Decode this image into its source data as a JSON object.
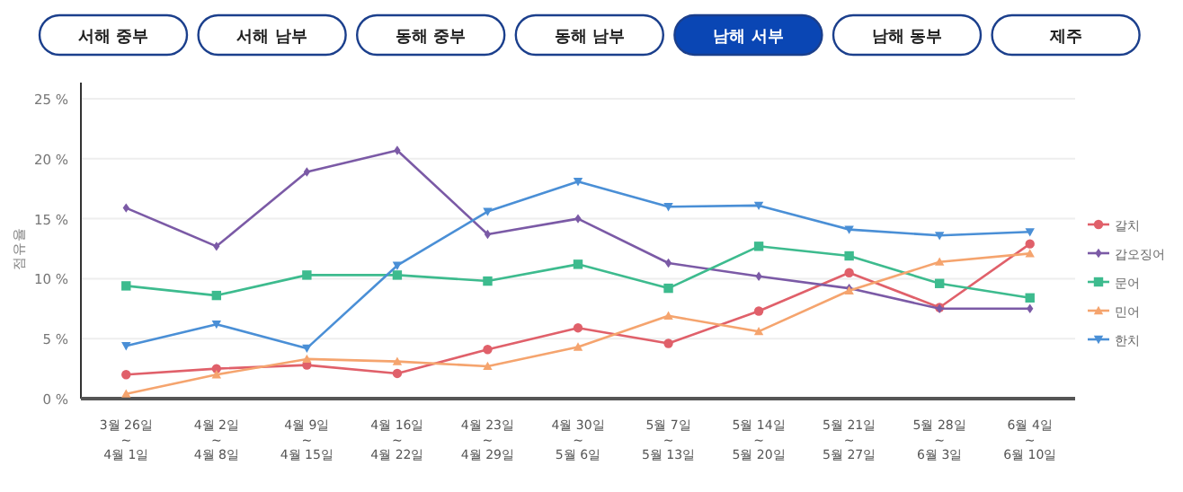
{
  "chart_data": {
    "type": "line",
    "annotations": [
      "서해 중부",
      "서해 남부",
      "동해 중부",
      "동해 남부",
      "남해 서부",
      "남해 동부",
      "제주"
    ],
    "ylabel": "점유율",
    "categories": [
      "3월 26일\n~\n4월 1일",
      "4월 2일\n~\n4월 8일",
      "4월 9일\n~\n4월 15일",
      "4월 16일\n~\n4월 22일",
      "4월 23일\n~\n4월 29일",
      "4월 30일\n~\n5월 6일",
      "5월 7일\n~\n5월 13일",
      "5월 14일\n~\n5월 20일",
      "5월 21일\n~\n5월 27일",
      "5월 28일\n~\n6월 3일",
      "6월 4일\n~\n6월 10일"
    ],
    "series": [
      {
        "name": "갈치",
        "color": "#e0606a",
        "marker": "circle",
        "values": [
          2.0,
          2.5,
          2.8,
          2.1,
          4.1,
          5.9,
          4.6,
          7.3,
          10.5,
          7.6,
          12.9
        ]
      },
      {
        "name": "갑오징어",
        "color": "#7b5aa6",
        "marker": "diamond",
        "values": [
          15.9,
          12.7,
          18.9,
          20.7,
          13.7,
          15.0,
          11.3,
          10.2,
          9.2,
          7.5,
          7.5
        ]
      },
      {
        "name": "문어",
        "color": "#3dbb8e",
        "marker": "square",
        "values": [
          9.4,
          8.6,
          10.3,
          10.3,
          9.8,
          11.2,
          9.2,
          12.7,
          11.9,
          9.6,
          8.4
        ]
      },
      {
        "name": "민어",
        "color": "#f5a46e",
        "marker": "triangle",
        "values": [
          0.4,
          2.0,
          3.3,
          3.1,
          2.7,
          4.3,
          6.9,
          5.6,
          9.0,
          11.4,
          12.1
        ]
      },
      {
        "name": "한치",
        "color": "#4a8fd6",
        "marker": "triangle-down",
        "values": [
          4.4,
          6.2,
          4.2,
          11.1,
          15.6,
          18.1,
          16.0,
          16.1,
          14.1,
          13.6,
          13.9
        ]
      }
    ],
    "ylim": [
      0,
      25
    ],
    "yticks": [
      {
        "value": 0,
        "label": "0 %"
      },
      {
        "value": 5,
        "label": "5 %"
      },
      {
        "value": 10,
        "label": "10 %"
      },
      {
        "value": 15,
        "label": "15 %"
      },
      {
        "value": 20,
        "label": "20 %"
      },
      {
        "value": 25,
        "label": "25 %"
      }
    ],
    "grid": "y",
    "legend": "right"
  }
}
